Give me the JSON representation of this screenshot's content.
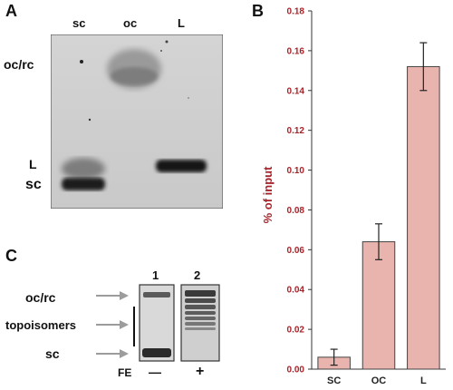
{
  "panels": {
    "a": "A",
    "b": "B",
    "c": "C"
  },
  "gel_a": {
    "lanes": [
      "sc",
      "oc",
      "L"
    ],
    "left_labels": {
      "ocrc": "oc/rc",
      "l": "L",
      "sc": "sc"
    }
  },
  "gel_c": {
    "lane_numbers": [
      "1",
      "2"
    ],
    "labels": {
      "ocrc": "oc/rc",
      "topoisomers": "topoisomers",
      "sc": "sc"
    },
    "fe_label": "FE",
    "fe_signs": [
      "—",
      "+"
    ]
  },
  "chart_data": {
    "type": "bar",
    "categories": [
      "SC",
      "OC",
      "L"
    ],
    "values": [
      0.006,
      0.064,
      0.152
    ],
    "errors": [
      0.004,
      0.009,
      0.012
    ],
    "ylabel": "% of input",
    "xlabel": "",
    "ylim": [
      0,
      0.18
    ],
    "yticks": [
      "0.00",
      "0.02",
      "0.04",
      "0.06",
      "0.08",
      "0.10",
      "0.12",
      "0.14",
      "0.16",
      "0.18"
    ],
    "bar_color": "#e8b4ad",
    "axis_label_color": "#a8242a",
    "grid": false
  }
}
